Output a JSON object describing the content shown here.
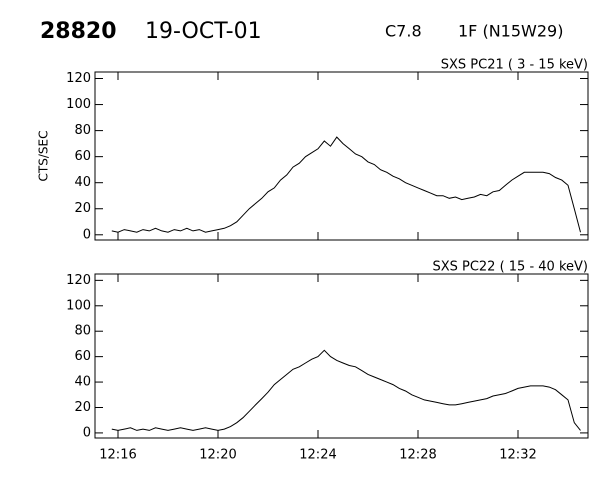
{
  "header": {
    "event": "28820",
    "date": "19-OCT-01",
    "class": "C7.8",
    "location": "1F (N15W29)"
  },
  "chart_data": [
    {
      "type": "line",
      "title": "SXS PC21  (  3 - 15 keV)",
      "ylabel": "CTS/SEC",
      "x": [
        15.75,
        16,
        16.25,
        16.5,
        16.75,
        17,
        17.25,
        17.5,
        17.75,
        18,
        18.25,
        18.5,
        18.75,
        19,
        19.25,
        19.5,
        19.75,
        20,
        20.25,
        20.5,
        20.75,
        21,
        21.25,
        21.5,
        21.75,
        22,
        22.25,
        22.5,
        22.75,
        23,
        23.25,
        23.5,
        23.75,
        24,
        24.25,
        24.5,
        24.75,
        25,
        25.25,
        25.5,
        25.75,
        26,
        26.25,
        26.5,
        26.75,
        27,
        27.25,
        27.5,
        27.75,
        28,
        28.25,
        28.5,
        28.75,
        29,
        29.25,
        29.5,
        29.75,
        30,
        30.25,
        30.5,
        30.75,
        31,
        31.25,
        31.5,
        31.75,
        32,
        32.25,
        32.5,
        32.75,
        33,
        33.25,
        33.5,
        33.75,
        34,
        34.25,
        34.5
      ],
      "series": [
        {
          "color": "#000000",
          "values": [
            3,
            2,
            4,
            3,
            2,
            4,
            3,
            5,
            3,
            2,
            4,
            3,
            5,
            3,
            4,
            2,
            3,
            4,
            5,
            7,
            10,
            15,
            20,
            24,
            28,
            33,
            36,
            42,
            46,
            52,
            55,
            60,
            63,
            66,
            72,
            68,
            75,
            70,
            66,
            62,
            60,
            56,
            54,
            50,
            48,
            45,
            43,
            40,
            38,
            36,
            34,
            32,
            30,
            30,
            28,
            29,
            27,
            28,
            29,
            31,
            30,
            33,
            34,
            38,
            42,
            45,
            48,
            48,
            48,
            48,
            47,
            44,
            42,
            38,
            20,
            2
          ]
        }
      ],
      "xlim": [
        15.08,
        34.8
      ],
      "ylim": [
        -4,
        125
      ],
      "xticks": [
        16,
        20,
        24,
        28,
        32
      ],
      "show_xtick_labels": false,
      "yticks": [
        0,
        20,
        40,
        60,
        80,
        100,
        120
      ]
    },
    {
      "type": "line",
      "title": "SXS PC22  ( 15 - 40 keV)",
      "x": [
        15.75,
        16,
        16.25,
        16.5,
        16.75,
        17,
        17.25,
        17.5,
        17.75,
        18,
        18.25,
        18.5,
        18.75,
        19,
        19.25,
        19.5,
        19.75,
        20,
        20.25,
        20.5,
        20.75,
        21,
        21.25,
        21.5,
        21.75,
        22,
        22.25,
        22.5,
        22.75,
        23,
        23.25,
        23.5,
        23.75,
        24,
        24.25,
        24.5,
        24.75,
        25,
        25.25,
        25.5,
        25.75,
        26,
        26.25,
        26.5,
        26.75,
        27,
        27.25,
        27.5,
        27.75,
        28,
        28.25,
        28.5,
        28.75,
        29,
        29.25,
        29.5,
        29.75,
        30,
        30.25,
        30.5,
        30.75,
        31,
        31.25,
        31.5,
        31.75,
        32,
        32.25,
        32.5,
        32.75,
        33,
        33.25,
        33.5,
        33.75,
        34,
        34.25,
        34.5
      ],
      "series": [
        {
          "color": "#000000",
          "values": [
            3,
            2,
            3,
            4,
            2,
            3,
            2,
            4,
            3,
            2,
            3,
            4,
            3,
            2,
            3,
            4,
            3,
            2,
            3,
            5,
            8,
            12,
            17,
            22,
            27,
            32,
            38,
            42,
            46,
            50,
            52,
            55,
            58,
            60,
            65,
            60,
            57,
            55,
            53,
            52,
            49,
            46,
            44,
            42,
            40,
            38,
            35,
            33,
            30,
            28,
            26,
            25,
            24,
            23,
            22,
            22,
            23,
            24,
            25,
            26,
            27,
            29,
            30,
            31,
            33,
            35,
            36,
            37,
            37,
            37,
            36,
            34,
            30,
            26,
            8,
            2
          ]
        }
      ],
      "xlim": [
        15.08,
        34.8
      ],
      "ylim": [
        -4,
        125
      ],
      "xticks": [
        {
          "value": 16,
          "label": "12:16"
        },
        {
          "value": 20,
          "label": "12:20"
        },
        {
          "value": 24,
          "label": "12:24"
        },
        {
          "value": 28,
          "label": "12:28"
        },
        {
          "value": 32,
          "label": "12:32"
        }
      ],
      "show_xtick_labels": true,
      "yticks": [
        0,
        20,
        40,
        60,
        80,
        100,
        120
      ]
    }
  ]
}
